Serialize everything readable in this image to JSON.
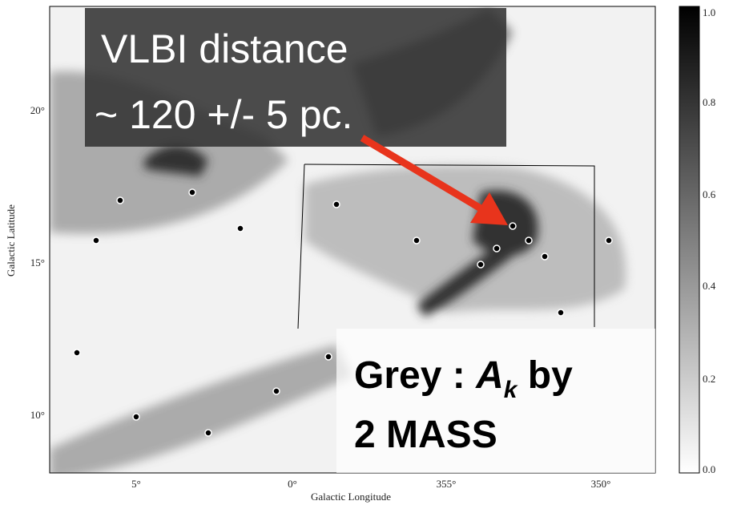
{
  "x_axis": {
    "label": "Galactic Longitude",
    "ticks": [
      "5°",
      "0°",
      "355°",
      "350°"
    ]
  },
  "y_axis": {
    "label": "Galactic Latitude",
    "ticks": [
      "20°",
      "15°",
      "10°"
    ]
  },
  "colorbar": {
    "ticks": [
      "1.0",
      "0.8",
      "0.6",
      "0.4",
      "0.2",
      "0.0"
    ]
  },
  "annotations": {
    "vlbi": [
      "VLBI distance",
      "~ 120 +/- 5 pc."
    ],
    "grey": {
      "prefix": "Grey : ",
      "symbol": "A",
      "subscript": "k",
      "suffix": " by",
      "line2": "2 MASS"
    }
  }
}
